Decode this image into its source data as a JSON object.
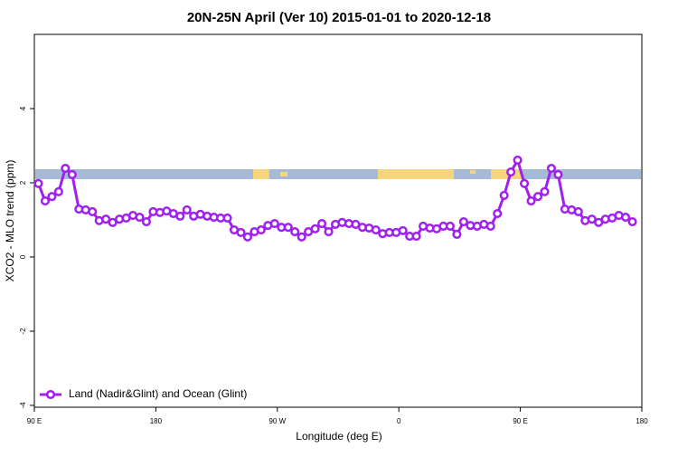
{
  "chart_data": {
    "type": "line",
    "title": "20N-25N April (Ver 10)   2015-01-01 to 2020-12-18",
    "x_label": "Longitude (deg E)",
    "y_label": "XCO2 - MLO trend (ppm)",
    "xlim": [
      90,
      540
    ],
    "xticks": [
      {
        "value": 90,
        "label": "90 E"
      },
      180,
      {
        "value": 270,
        "label": "90 W"
      },
      {
        "value": 360,
        "label": "0"
      },
      {
        "value": 450,
        "label": "90 E"
      },
      {
        "value": 540,
        "label": "180"
      }
    ],
    "ylim": [
      -4.05,
      6
    ],
    "yticks": [
      -4,
      -2,
      0,
      2,
      4
    ],
    "legend": "bottom-left",
    "x": [
      93,
      98,
      103,
      108,
      113,
      118,
      123,
      128,
      133,
      138,
      143,
      148,
      153,
      158,
      163,
      168,
      173,
      178,
      183,
      188,
      193,
      198,
      203,
      208,
      213,
      218,
      223,
      228,
      233,
      238,
      243,
      248,
      253,
      258,
      263,
      268,
      273,
      278,
      283,
      288,
      293,
      298,
      303,
      308,
      313,
      318,
      323,
      328,
      333,
      338,
      343,
      348,
      353,
      358,
      363,
      368,
      373,
      378,
      383,
      388,
      393,
      398,
      403,
      408,
      413,
      418,
      423,
      428,
      433,
      438,
      443,
      448,
      453,
      458,
      463,
      468,
      473,
      478,
      483,
      488,
      493,
      498,
      503,
      508,
      513,
      518,
      523,
      528,
      533
    ],
    "series": [
      {
        "name": "Land (Nadir&Glint) and Ocean (Glint)",
        "color": "#a020f0",
        "values": [
          1.98,
          1.51,
          1.63,
          1.76,
          2.39,
          2.22,
          1.29,
          1.27,
          1.22,
          0.98,
          1.02,
          0.93,
          1.02,
          1.05,
          1.12,
          1.07,
          0.95,
          1.22,
          1.2,
          1.24,
          1.17,
          1.1,
          1.27,
          1.1,
          1.15,
          1.1,
          1.07,
          1.05,
          1.05,
          0.73,
          0.66,
          0.54,
          0.68,
          0.73,
          0.85,
          0.9,
          0.8,
          0.8,
          0.68,
          0.54,
          0.68,
          0.76,
          0.9,
          0.68,
          0.88,
          0.93,
          0.9,
          0.88,
          0.8,
          0.78,
          0.73,
          0.63,
          0.66,
          0.66,
          0.71,
          0.56,
          0.56,
          0.83,
          0.78,
          0.76,
          0.83,
          0.83,
          0.61,
          0.95,
          0.85,
          0.83,
          0.88,
          0.83,
          1.17,
          1.66,
          2.29,
          2.61,
          1.98,
          1.51,
          1.63,
          1.76,
          2.39,
          2.22,
          1.29,
          1.27,
          1.22,
          0.98,
          1.02,
          0.93,
          1.02,
          1.05,
          1.12,
          1.07,
          0.95
        ]
      }
    ]
  }
}
